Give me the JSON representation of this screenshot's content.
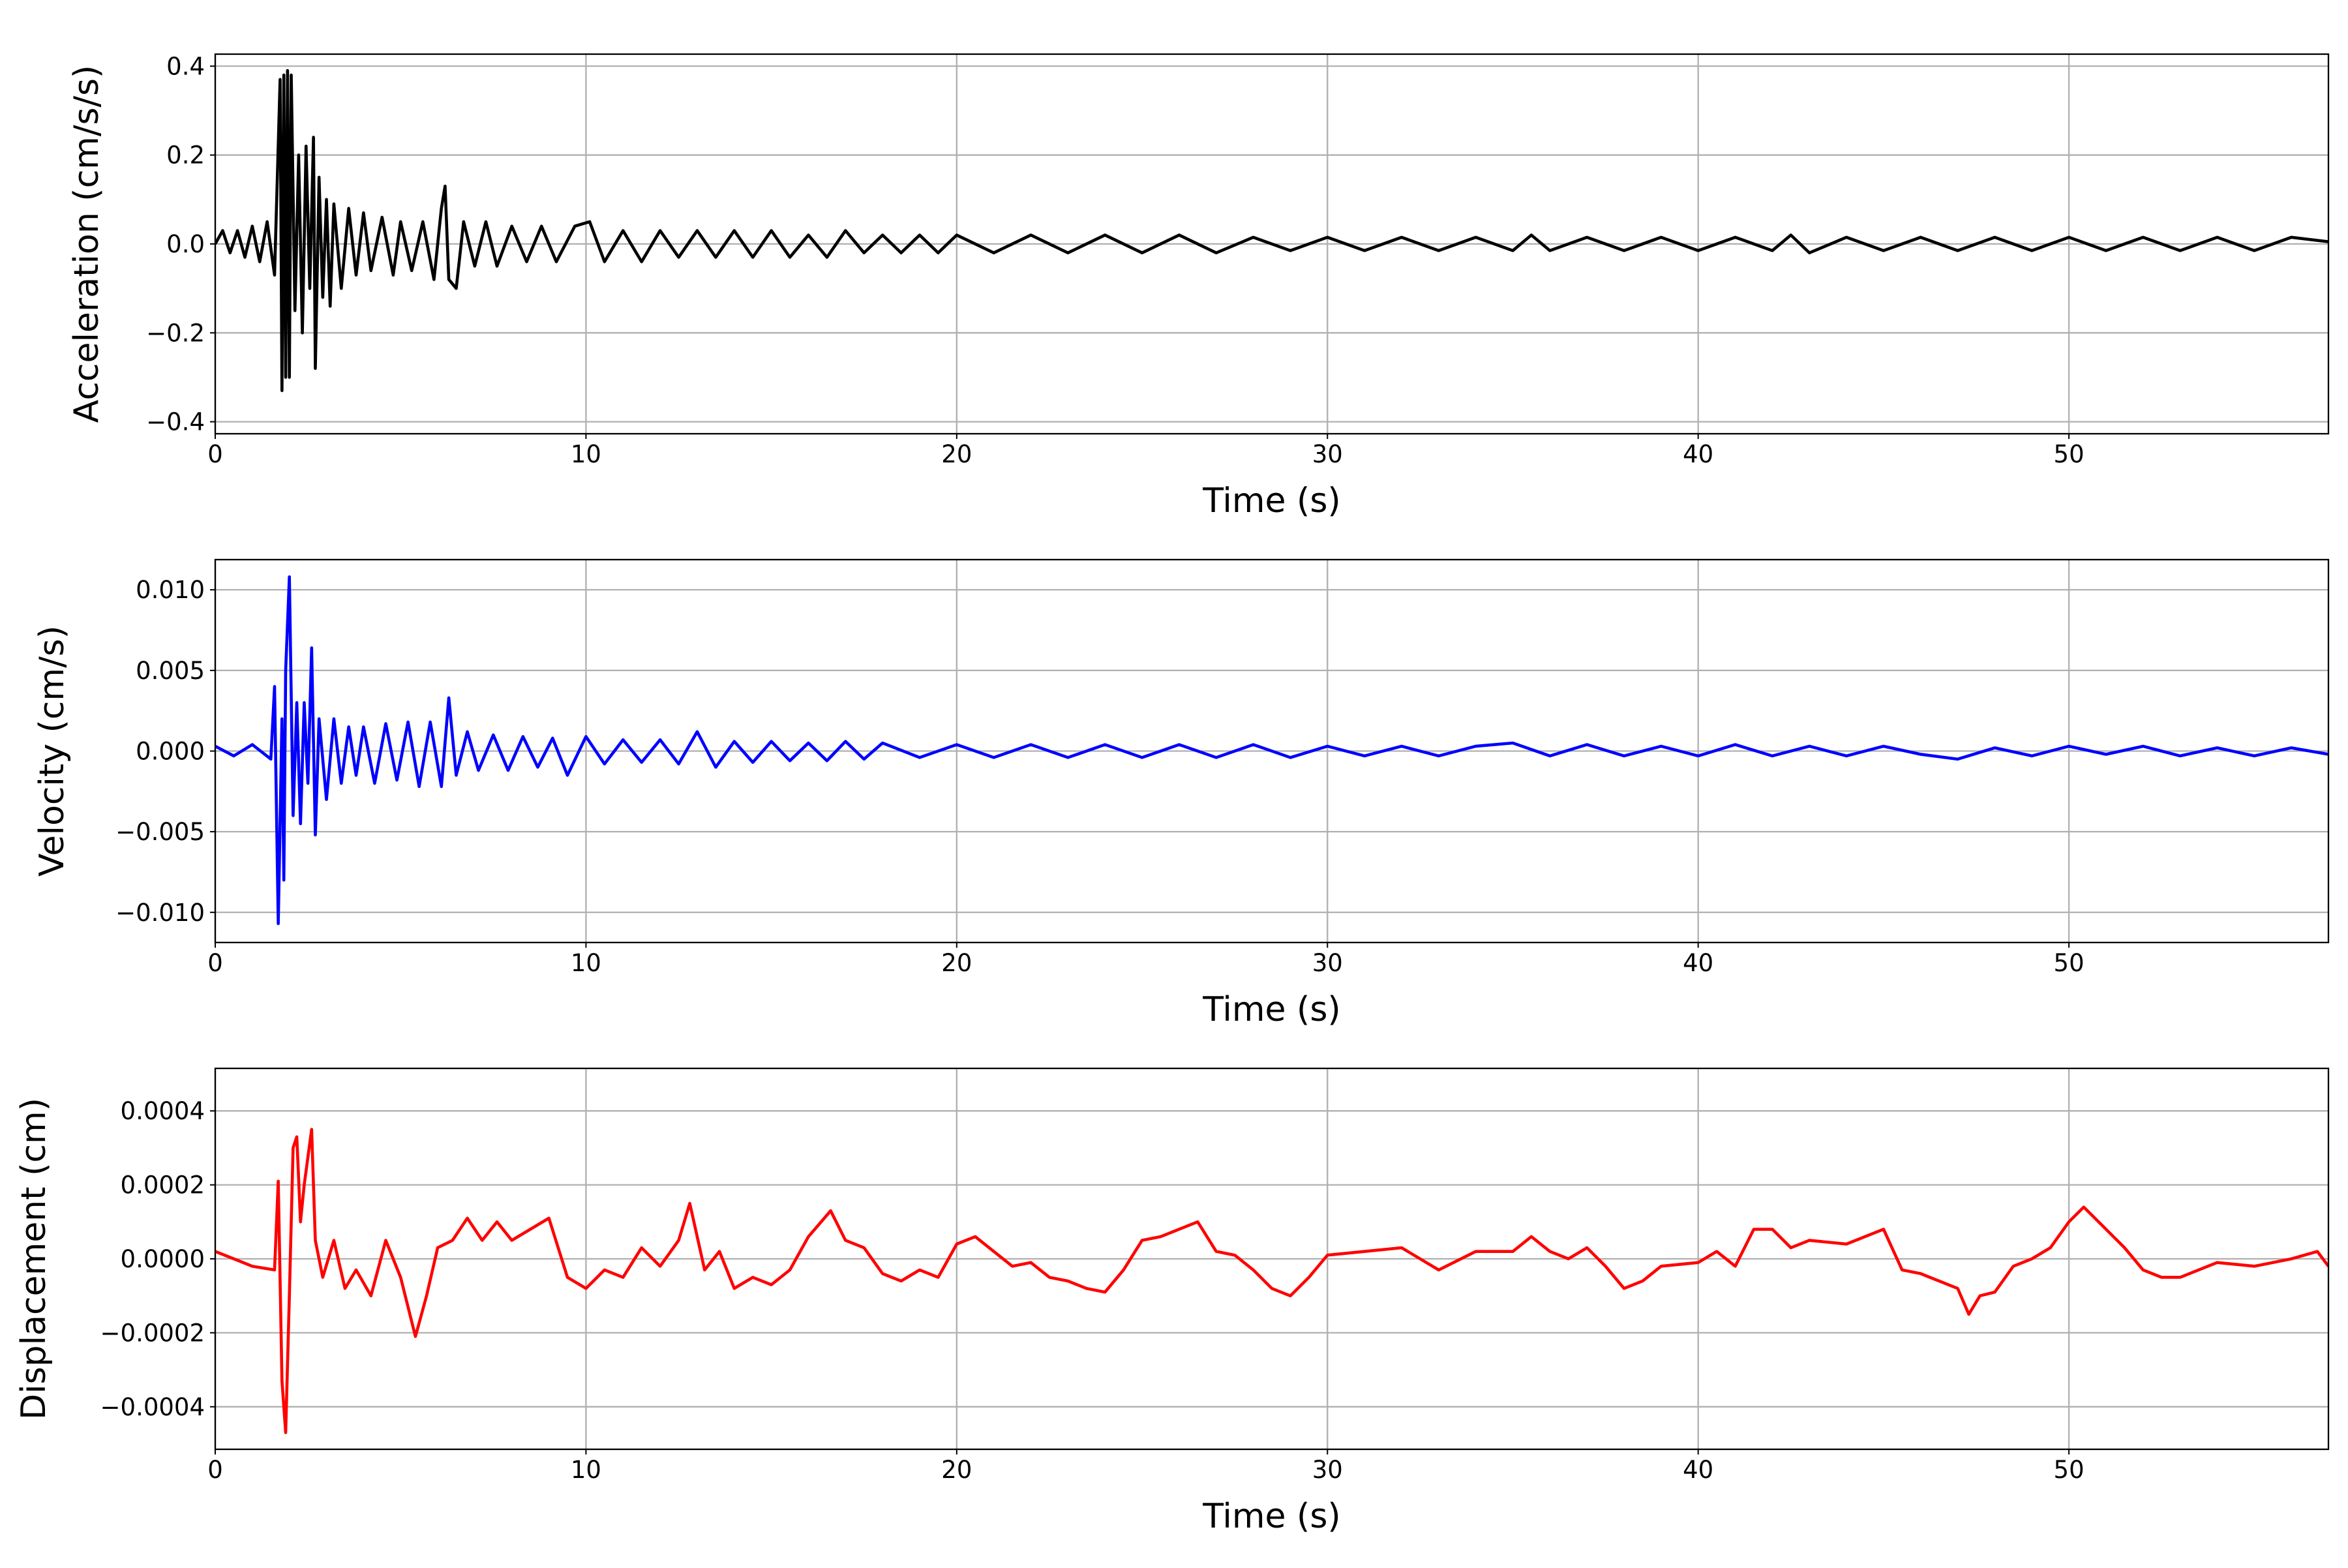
{
  "chart_data": [
    {
      "type": "line",
      "xlabel": "Time (s)",
      "ylabel": "Acceleration (cm/s/s)",
      "color": "#000000",
      "grid": true,
      "xlim": [
        0,
        57
      ],
      "xticks": [
        0,
        10,
        20,
        30,
        40,
        50
      ],
      "ylim": [
        -0.427,
        0.427
      ],
      "yticks": [
        {
          "value": -0.4,
          "label": "−0.4"
        },
        {
          "value": -0.2,
          "label": "−0.2"
        },
        {
          "value": 0,
          "label": "0.0"
        },
        0.2,
        0.4
      ],
      "x": [
        0,
        0.2,
        0.4,
        0.6,
        0.8,
        1.0,
        1.2,
        1.4,
        1.6,
        1.75,
        1.8,
        1.85,
        1.9,
        1.95,
        2.0,
        2.05,
        2.15,
        2.25,
        2.35,
        2.45,
        2.55,
        2.65,
        2.7,
        2.8,
        2.9,
        3.0,
        3.1,
        3.2,
        3.4,
        3.6,
        3.8,
        4.0,
        4.2,
        4.5,
        4.8,
        5.0,
        5.3,
        5.6,
        5.9,
        6.1,
        6.2,
        6.3,
        6.5,
        6.7,
        7.0,
        7.3,
        7.6,
        8.0,
        8.4,
        8.8,
        9.2,
        9.7,
        10.1,
        10.5,
        11,
        11.5,
        12,
        12.5,
        13,
        13.5,
        14,
        14.5,
        15,
        15.5,
        16,
        16.5,
        17,
        17.5,
        18,
        18.5,
        19,
        19.5,
        20,
        21,
        22,
        23,
        24,
        25,
        26,
        27,
        28,
        29,
        30,
        31,
        32,
        33,
        34,
        35,
        35.5,
        36,
        37,
        38,
        39,
        40,
        41,
        42,
        42.5,
        43,
        44,
        45,
        46,
        47,
        48,
        49,
        50,
        51,
        52,
        53,
        54,
        55,
        56,
        57
      ],
      "values": [
        0,
        0.03,
        -0.02,
        0.03,
        -0.03,
        0.04,
        -0.04,
        0.05,
        -0.07,
        0.37,
        -0.33,
        0.38,
        -0.3,
        0.39,
        -0.3,
        0.38,
        -0.15,
        0.2,
        -0.2,
        0.22,
        -0.1,
        0.24,
        -0.28,
        0.15,
        -0.12,
        0.1,
        -0.14,
        0.09,
        -0.1,
        0.08,
        -0.07,
        0.07,
        -0.06,
        0.06,
        -0.07,
        0.05,
        -0.06,
        0.05,
        -0.08,
        0.08,
        0.13,
        -0.08,
        -0.1,
        0.05,
        -0.05,
        0.05,
        -0.05,
        0.04,
        -0.04,
        0.04,
        -0.04,
        0.04,
        0.05,
        -0.04,
        0.03,
        -0.04,
        0.03,
        -0.03,
        0.03,
        -0.03,
        0.03,
        -0.03,
        0.03,
        -0.03,
        0.02,
        -0.03,
        0.03,
        -0.02,
        0.02,
        -0.02,
        0.02,
        -0.02,
        0.02,
        -0.02,
        0.02,
        -0.02,
        0.02,
        -0.02,
        0.02,
        -0.02,
        0.015,
        -0.015,
        0.015,
        -0.015,
        0.015,
        -0.015,
        0.015,
        -0.015,
        0.02,
        -0.015,
        0.015,
        -0.015,
        0.015,
        -0.015,
        0.015,
        -0.015,
        0.02,
        -0.02,
        0.015,
        -0.015,
        0.015,
        -0.015,
        0.015,
        -0.015,
        0.015,
        -0.015,
        0.015,
        -0.015,
        0.015,
        -0.015,
        0.015,
        0.005
      ]
    },
    {
      "type": "line",
      "xlabel": "Time (s)",
      "ylabel": "Velocity (cm/s)",
      "color": "#0000ff",
      "grid": true,
      "xlim": [
        0,
        57
      ],
      "xticks": [
        0,
        10,
        20,
        30,
        40,
        50
      ],
      "ylim": [
        -0.01187,
        0.01187
      ],
      "yticks": [
        {
          "value": -0.01,
          "label": "−0.010"
        },
        {
          "value": -0.005,
          "label": "−0.005"
        },
        {
          "value": 0,
          "label": "0.000"
        },
        {
          "value": 0.005,
          "label": "0.005"
        },
        {
          "value": 0.01,
          "label": "0.010"
        }
      ],
      "x": [
        0,
        0.5,
        1.0,
        1.5,
        1.6,
        1.7,
        1.8,
        1.85,
        1.9,
        2.0,
        2.1,
        2.2,
        2.3,
        2.4,
        2.5,
        2.6,
        2.7,
        2.8,
        3.0,
        3.2,
        3.4,
        3.6,
        3.8,
        4.0,
        4.3,
        4.6,
        4.9,
        5.2,
        5.5,
        5.8,
        6.1,
        6.3,
        6.5,
        6.8,
        7.1,
        7.5,
        7.9,
        8.3,
        8.7,
        9.1,
        9.5,
        10,
        10.5,
        11,
        11.5,
        12,
        12.5,
        13,
        13.5,
        14,
        14.5,
        15,
        15.5,
        16,
        16.5,
        17,
        17.5,
        18,
        19,
        20,
        21,
        22,
        23,
        24,
        25,
        26,
        27,
        28,
        29,
        30,
        31,
        32,
        33,
        34,
        35,
        36,
        37,
        38,
        39,
        40,
        41,
        42,
        43,
        44,
        45,
        46,
        47,
        48,
        49,
        50,
        51,
        52,
        53,
        54,
        55,
        56,
        57
      ],
      "values": [
        0.0003,
        -0.0003,
        0.0004,
        -0.0005,
        0.004,
        -0.0107,
        0.002,
        -0.008,
        0.005,
        0.0108,
        -0.004,
        0.003,
        -0.0045,
        0.003,
        -0.002,
        0.0064,
        -0.0052,
        0.002,
        -0.003,
        0.002,
        -0.002,
        0.0015,
        -0.0015,
        0.0015,
        -0.002,
        0.0017,
        -0.0018,
        0.0018,
        -0.0022,
        0.0018,
        -0.0022,
        0.0033,
        -0.0015,
        0.0012,
        -0.0012,
        0.001,
        -0.0012,
        0.0009,
        -0.001,
        0.0008,
        -0.0015,
        0.0009,
        -0.0008,
        0.0007,
        -0.0007,
        0.0007,
        -0.0008,
        0.0012,
        -0.001,
        0.0006,
        -0.0007,
        0.0006,
        -0.0006,
        0.0005,
        -0.0006,
        0.0006,
        -0.0005,
        0.0005,
        -0.0004,
        0.0004,
        -0.0004,
        0.0004,
        -0.0004,
        0.0004,
        -0.0004,
        0.0004,
        -0.0004,
        0.0004,
        -0.0004,
        0.0003,
        -0.0003,
        0.0003,
        -0.0003,
        0.0003,
        0.0005,
        -0.0003,
        0.0004,
        -0.0003,
        0.0003,
        -0.0003,
        0.0004,
        -0.0003,
        0.0003,
        -0.0003,
        0.0003,
        -0.0002,
        -0.0005,
        0.0002,
        -0.0003,
        0.0003,
        -0.0002,
        0.0003,
        -0.0003,
        0.0002,
        -0.0003,
        0.0002,
        -0.0002
      ]
    },
    {
      "type": "line",
      "xlabel": "Time (s)",
      "ylabel": "Displacement (cm)",
      "color": "#ff0000",
      "grid": true,
      "xlim": [
        0,
        57
      ],
      "xticks": [
        0,
        10,
        20,
        30,
        40,
        50
      ],
      "ylim": [
        -0.000515,
        0.000515
      ],
      "yticks": [
        {
          "value": -0.0004,
          "label": "−0.0004"
        },
        {
          "value": -0.0002,
          "label": "−0.0002"
        },
        {
          "value": 0,
          "label": "0.0000"
        },
        {
          "value": 0.0002,
          "label": "0.0002"
        },
        {
          "value": 0.0004,
          "label": "0.0004"
        }
      ],
      "x": [
        0,
        1,
        1.6,
        1.7,
        1.8,
        1.9,
        2.0,
        2.1,
        2.2,
        2.3,
        2.4,
        2.6,
        2.7,
        2.9,
        3.2,
        3.5,
        3.8,
        4.2,
        4.6,
        5.0,
        5.4,
        5.7,
        6.0,
        6.4,
        6.8,
        7.2,
        7.6,
        8.0,
        8.5,
        9.0,
        9.5,
        10,
        10.5,
        11,
        11.5,
        12,
        12.5,
        12.8,
        13.2,
        13.6,
        14,
        14.5,
        15,
        15.5,
        16,
        16.6,
        17,
        17.5,
        18,
        18.5,
        19,
        19.5,
        20,
        20.5,
        21,
        21.5,
        22,
        22.5,
        23,
        23.5,
        24,
        24.5,
        25,
        25.5,
        26.5,
        27,
        27.5,
        28,
        28.5,
        29,
        29.5,
        30,
        31,
        32,
        33,
        34,
        35,
        35.5,
        36,
        36.5,
        37,
        37.5,
        38,
        38.5,
        39,
        40,
        40.5,
        41,
        41.5,
        42,
        42.5,
        43,
        44,
        45,
        45.5,
        46,
        47,
        47.3,
        47.6,
        48,
        48.5,
        49,
        49.5,
        50,
        50.4,
        51,
        51.5,
        52,
        52.5,
        53,
        54,
        55,
        56,
        56.7,
        57
      ],
      "values": [
        2e-05,
        -2e-05,
        -3e-05,
        0.00021,
        -0.00033,
        -0.00047,
        -0.0001,
        0.0003,
        0.00033,
        0.0001,
        0.0002,
        0.00035,
        5e-05,
        -5e-05,
        5e-05,
        -8e-05,
        -3e-05,
        -0.0001,
        5e-05,
        -5e-05,
        -0.00021,
        -0.0001,
        3e-05,
        5e-05,
        0.00011,
        5e-05,
        0.0001,
        5e-05,
        8e-05,
        0.00011,
        -5e-05,
        -8e-05,
        -3e-05,
        -5e-05,
        3e-05,
        -2e-05,
        5e-05,
        0.00015,
        -3e-05,
        2e-05,
        -8e-05,
        -5e-05,
        -7e-05,
        -3e-05,
        6e-05,
        0.00013,
        5e-05,
        3e-05,
        -4e-05,
        -6e-05,
        -3e-05,
        -5e-05,
        4e-05,
        6e-05,
        2e-05,
        -2e-05,
        -1e-05,
        -5e-05,
        -6e-05,
        -8e-05,
        -9e-05,
        -3e-05,
        5e-05,
        6e-05,
        0.0001,
        2e-05,
        1e-05,
        -3e-05,
        -8e-05,
        -0.0001,
        -5e-05,
        1e-05,
        2e-05,
        3e-05,
        -3e-05,
        2e-05,
        2e-05,
        6e-05,
        2e-05,
        0,
        3e-05,
        -2e-05,
        -8e-05,
        -6e-05,
        -2e-05,
        -1e-05,
        2e-05,
        -2e-05,
        8e-05,
        8e-05,
        3e-05,
        5e-05,
        4e-05,
        8e-05,
        -3e-05,
        -4e-05,
        -8e-05,
        -0.00015,
        -0.0001,
        -9e-05,
        -2e-05,
        0,
        3e-05,
        0.0001,
        0.00014,
        8e-05,
        3e-05,
        -3e-05,
        -5e-05,
        -5e-05,
        -1e-05,
        -2e-05,
        0,
        2e-05,
        -2e-05
      ]
    }
  ]
}
